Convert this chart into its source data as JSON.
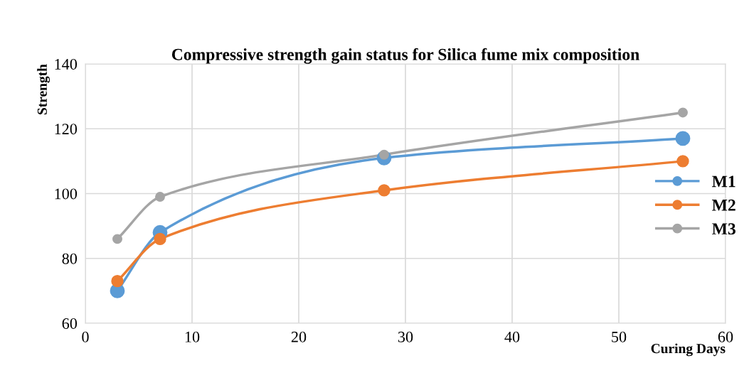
{
  "chart_data": {
    "type": "line",
    "title": "Compressive strength gain status for Silica fume mix composition",
    "xlabel": "Curing Days",
    "ylabel": "Strength",
    "x": [
      3,
      7,
      28,
      56
    ],
    "series": [
      {
        "name": "M1",
        "color": "#5b9bd5",
        "values": [
          70,
          88,
          111,
          117
        ]
      },
      {
        "name": "M2",
        "color": "#ed7d31",
        "values": [
          73,
          86,
          101,
          110
        ]
      },
      {
        "name": "M3",
        "color": "#a5a5a5",
        "values": [
          86,
          99,
          112,
          125
        ]
      }
    ],
    "xlim": [
      0,
      60
    ],
    "xticks": [
      0,
      10,
      20,
      30,
      40,
      50,
      60
    ],
    "ylim": [
      60,
      140
    ],
    "yticks": [
      60,
      80,
      100,
      120,
      140
    ],
    "grid": true,
    "legend": "right",
    "marker": "circle",
    "line_style": "solid"
  }
}
